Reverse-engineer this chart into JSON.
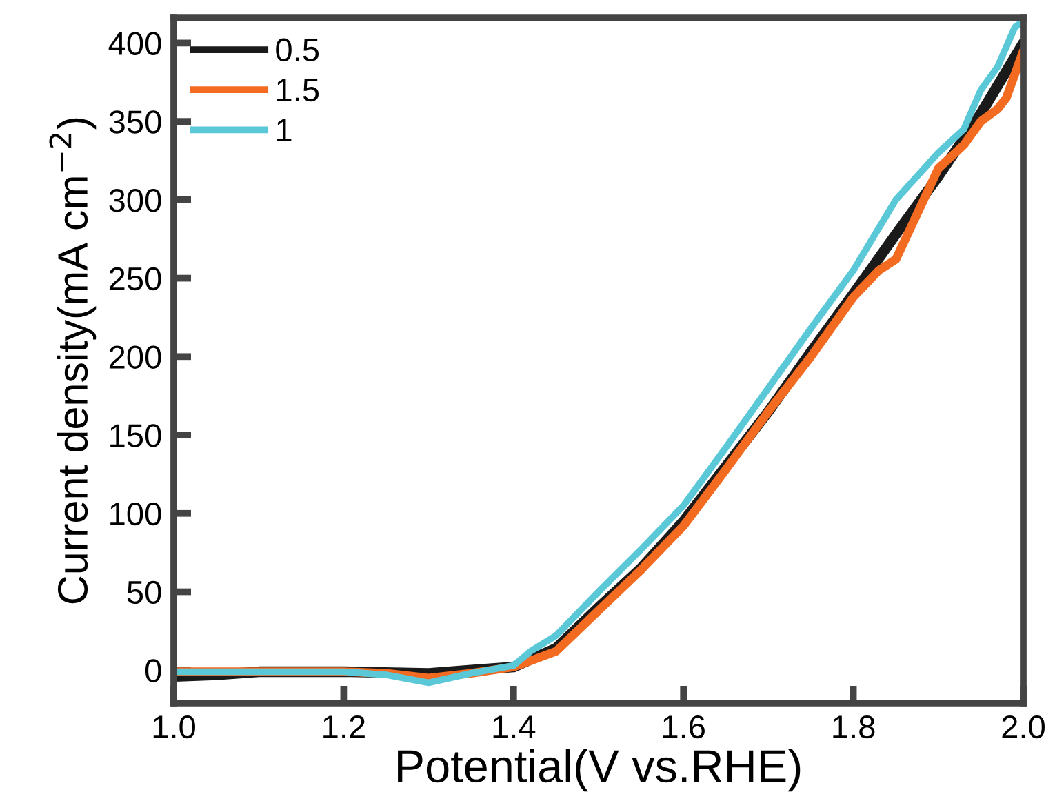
{
  "chart_data": {
    "type": "line",
    "xlabel": "Potential(V vs.RHE)",
    "ylabel": "Current density(mA cm$^{−2}$)",
    "xlim": [
      1.0,
      2.0
    ],
    "xticks": [
      {
        "value": 1.0,
        "label": "1.0"
      },
      {
        "value": 1.2,
        "label": "1.2"
      },
      {
        "value": 1.4,
        "label": "1.4"
      },
      {
        "value": 1.6,
        "label": "1.6"
      },
      {
        "value": 1.8,
        "label": "1.8"
      },
      {
        "value": 2.0,
        "label": "2.0"
      }
    ],
    "ylim": [
      -21,
      416
    ],
    "yticks": [
      0,
      50,
      100,
      150,
      200,
      250,
      300,
      350,
      400
    ],
    "grid": false,
    "legend": "top left",
    "marker": "none",
    "line_style": "solid",
    "series": [
      {
        "name": "0.5",
        "color": "#1a1a1a",
        "x": [
          1.0,
          1.05,
          1.1,
          1.2,
          1.3,
          1.35,
          1.4,
          1.45,
          1.5,
          1.55,
          1.6,
          1.65,
          1.7,
          1.75,
          1.8,
          1.85,
          1.9,
          1.95,
          2.0
        ],
        "values": [
          -4,
          -3,
          -1,
          -1,
          -2,
          0,
          2,
          14,
          40,
          65,
          95,
          130,
          165,
          203,
          240,
          278,
          315,
          355,
          400
        ]
      },
      {
        "name": "1.5",
        "color": "#f26b21",
        "x": [
          1.0,
          1.1,
          1.2,
          1.25,
          1.3,
          1.35,
          1.4,
          1.45,
          1.5,
          1.55,
          1.6,
          1.65,
          1.7,
          1.75,
          1.8,
          1.83,
          1.85,
          1.9,
          1.93,
          1.95,
          1.97,
          1.98,
          2.0
        ],
        "values": [
          -1,
          -1,
          -1,
          -2,
          -5,
          -2,
          2,
          12,
          38,
          64,
          92,
          128,
          165,
          200,
          238,
          255,
          262,
          320,
          335,
          350,
          358,
          365,
          395
        ]
      },
      {
        "name": "1",
        "color": "#5bc8d8",
        "x": [
          1.0,
          1.1,
          1.2,
          1.25,
          1.3,
          1.35,
          1.4,
          1.42,
          1.45,
          1.5,
          1.55,
          1.6,
          1.65,
          1.7,
          1.75,
          1.8,
          1.85,
          1.9,
          1.93,
          1.95,
          1.97,
          1.99,
          2.0
        ],
        "values": [
          -1,
          -1,
          -1,
          -3,
          -8,
          -2,
          3,
          12,
          22,
          50,
          77,
          105,
          142,
          180,
          218,
          255,
          300,
          330,
          345,
          370,
          385,
          410,
          414
        ]
      }
    ]
  }
}
